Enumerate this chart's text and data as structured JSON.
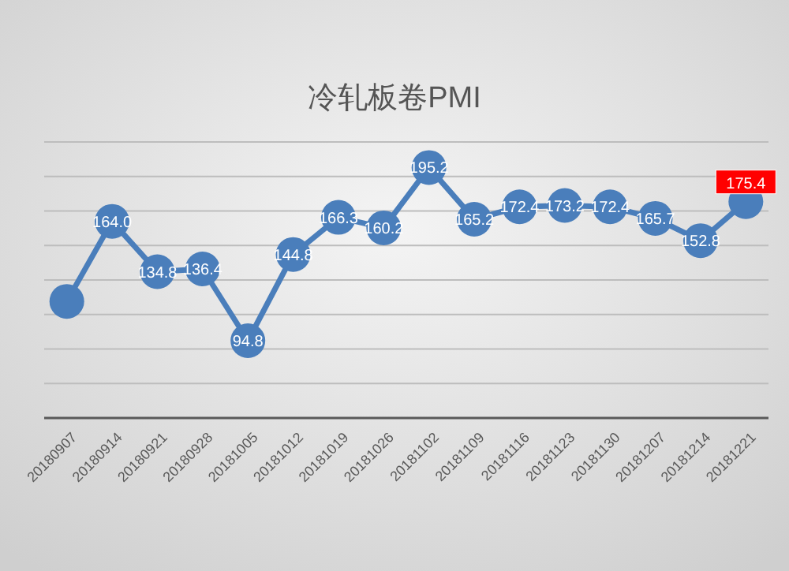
{
  "chart_data": {
    "type": "line",
    "title": "冷轧板卷PMI",
    "categories": [
      "20180907",
      "20180914",
      "20180921",
      "20180928",
      "20181005",
      "20181012",
      "20181019",
      "20181026",
      "20181102",
      "20181109",
      "20181116",
      "20181123",
      "20181130",
      "20181207",
      "20181214",
      "20181221"
    ],
    "values": [
      117.6,
      164.0,
      134.8,
      136.4,
      94.8,
      144.8,
      166.3,
      160.2,
      195.2,
      165.2,
      172.4,
      173.2,
      172.4,
      165.7,
      152.8,
      175.4
    ],
    "value_labels": [
      null,
      "164.0",
      "134.8",
      "136.4",
      "94.8",
      "144.8",
      "166.3",
      "160.2",
      "195.2",
      "165.2",
      "172.4",
      "173.2",
      "172.4",
      "165.7",
      "152.8",
      "175.4"
    ],
    "color": "#4a7ebb",
    "marker": "circle",
    "ylim": [
      50,
      210
    ],
    "yticks": [
      {
        "value": 50,
        "label": null
      },
      {
        "value": 70,
        "label": null
      },
      {
        "value": 90,
        "label": null
      },
      {
        "value": 110,
        "label": null
      },
      {
        "value": 130,
        "label": null
      },
      {
        "value": 150,
        "label": null
      },
      {
        "value": 170,
        "label": null
      },
      {
        "value": 190,
        "label": null
      },
      {
        "value": 210,
        "label": null
      }
    ],
    "grid": "y",
    "tick_labels": "x"
  }
}
